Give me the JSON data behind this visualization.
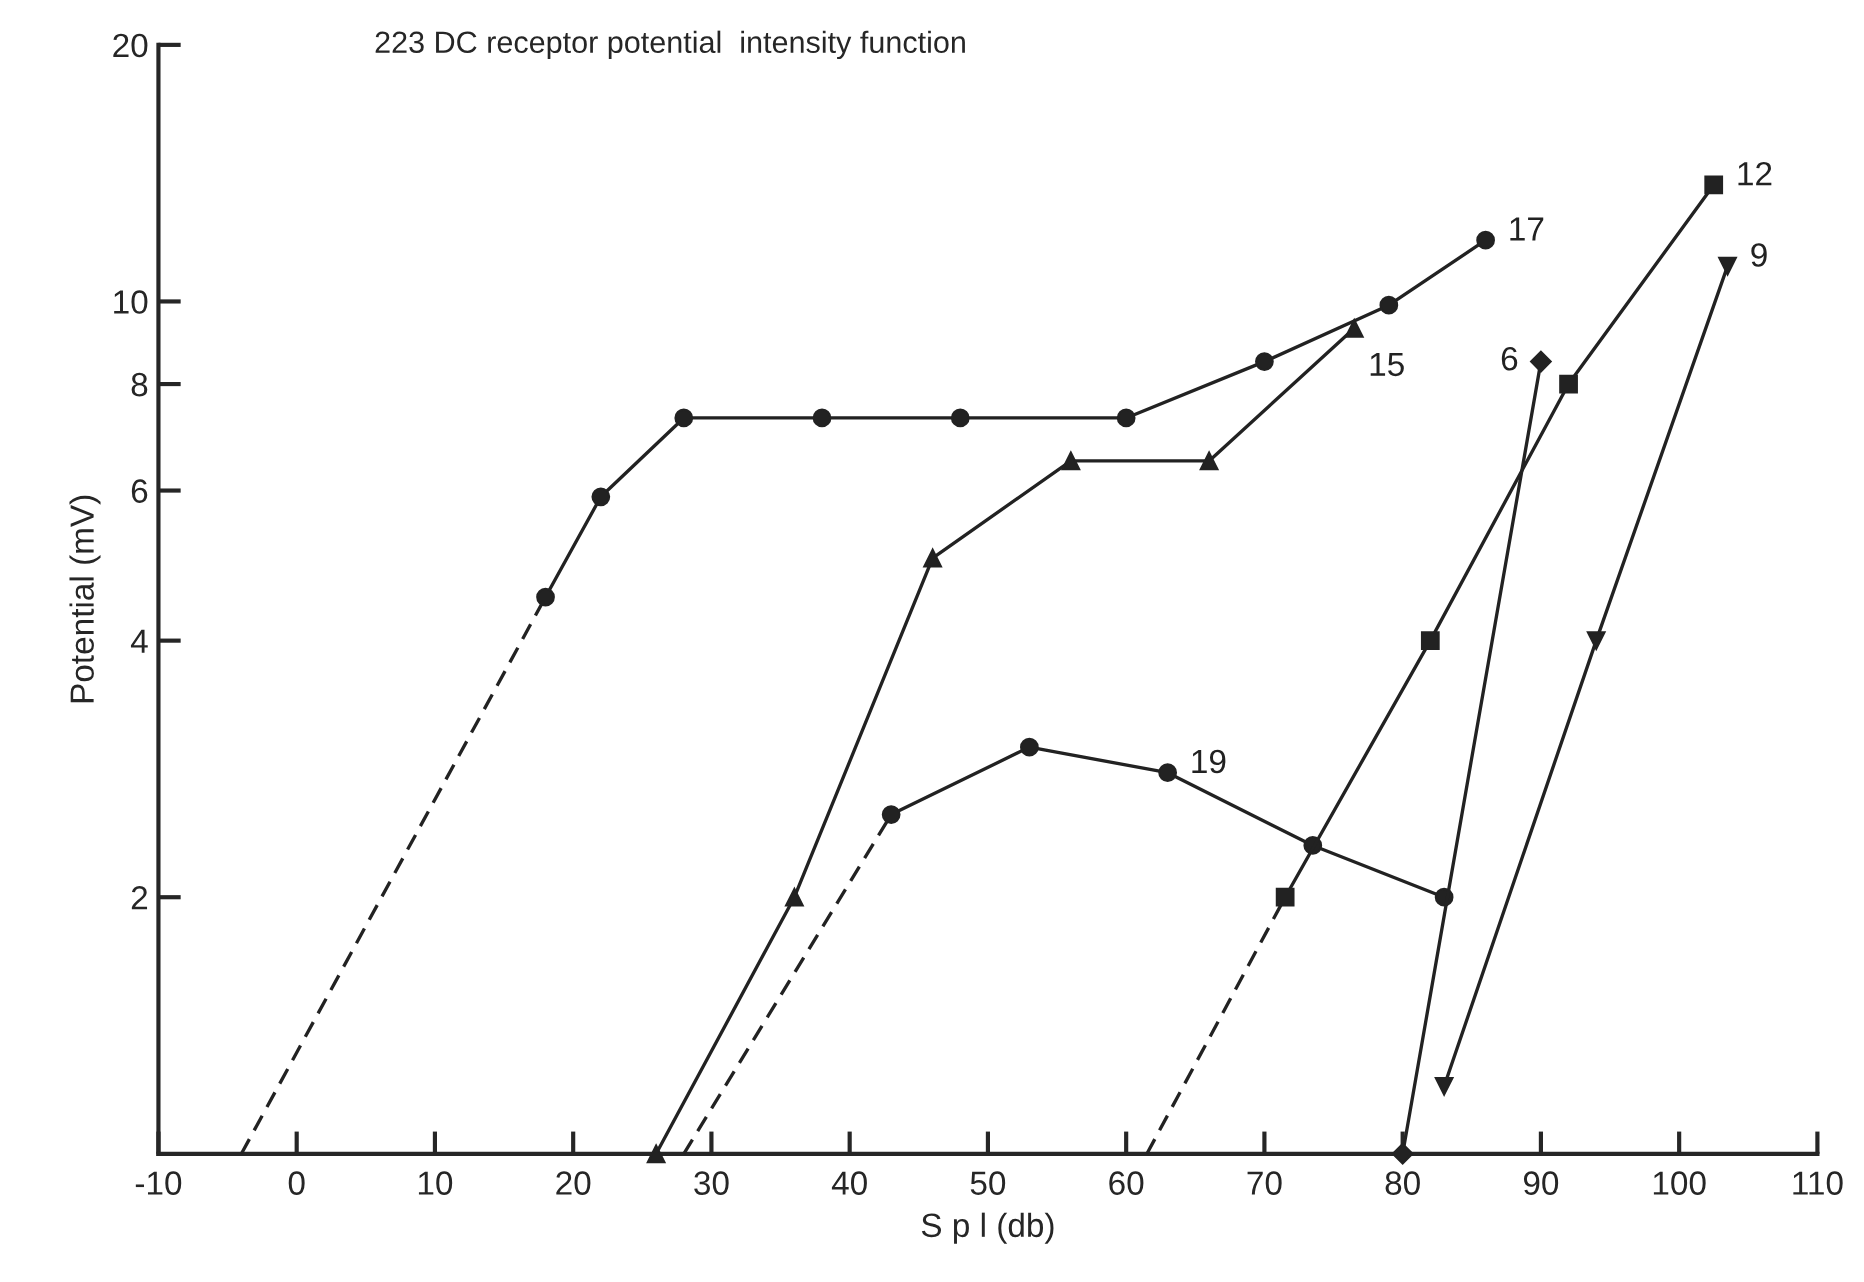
{
  "chart_data": {
    "type": "line",
    "title": "223 DC receptor potential  intensity function",
    "xlabel": "S p l (db)",
    "ylabel": "Potential (mV)",
    "log": "y",
    "grid": false,
    "legend": false,
    "xlim": [
      -10,
      110
    ],
    "xticks": [
      -10,
      0,
      10,
      20,
      30,
      40,
      50,
      60,
      70,
      80,
      90,
      100,
      110
    ],
    "ylim": [
      1,
      20
    ],
    "yticks": [
      2,
      4,
      6,
      8,
      10,
      20
    ],
    "series": [
      {
        "color": "#222222",
        "marker": "circle",
        "line_style": "solid",
        "x": [
          18,
          22,
          28,
          38,
          48,
          60,
          70,
          79,
          86
        ],
        "values": [
          4.5,
          5.9,
          7.3,
          7.3,
          7.3,
          7.3,
          8.5,
          9.9,
          11.8
        ]
      },
      {
        "color": "#222222",
        "marker": "none",
        "line_style": "dashed",
        "x": [
          -4,
          18
        ],
        "values": [
          1,
          4.5
        ]
      },
      {
        "color": "#222222",
        "marker": "triangle",
        "line_style": "solid",
        "x": [
          26,
          36,
          46,
          56,
          66,
          76.5
        ],
        "values": [
          1,
          2.0,
          5.0,
          6.5,
          6.5,
          9.3
        ]
      },
      {
        "color": "#222222",
        "marker": "circle",
        "line_style": "solid",
        "x": [
          43,
          53,
          63,
          73.5,
          83
        ],
        "values": [
          2.5,
          3.0,
          2.8,
          2.3,
          2.0
        ]
      },
      {
        "color": "#222222",
        "marker": "none",
        "line_style": "dashed",
        "x": [
          28,
          43
        ],
        "values": [
          1,
          2.5
        ]
      },
      {
        "color": "#222222",
        "marker": "square",
        "line_style": "solid",
        "x": [
          71.5,
          82,
          92,
          102.5
        ],
        "values": [
          2.0,
          4.0,
          8.0,
          13.7
        ]
      },
      {
        "color": "#222222",
        "marker": "none",
        "line_style": "dashed",
        "x": [
          61.5,
          71.5
        ],
        "values": [
          1,
          2.0
        ]
      },
      {
        "color": "#222222",
        "marker": "diamond",
        "line_style": "solid",
        "x": [
          80,
          90
        ],
        "values": [
          1,
          8.5
        ]
      },
      {
        "color": "#222222",
        "marker": "triangle_down",
        "line_style": "solid",
        "x": [
          83,
          94,
          103.5
        ],
        "values": [
          1.2,
          4.0,
          11.0
        ]
      }
    ],
    "annotations": [
      {
        "text": "17",
        "x": 86,
        "y": 11.8
      },
      {
        "text": "15",
        "x": 76.5,
        "y": 9.3
      },
      {
        "text": "19",
        "x": 63,
        "y": 2.8
      },
      {
        "text": "6",
        "x": 90,
        "y": 8.5
      },
      {
        "text": "12",
        "x": 102.5,
        "y": 13.7
      },
      {
        "text": "9",
        "x": 103.5,
        "y": 11.0
      }
    ]
  }
}
